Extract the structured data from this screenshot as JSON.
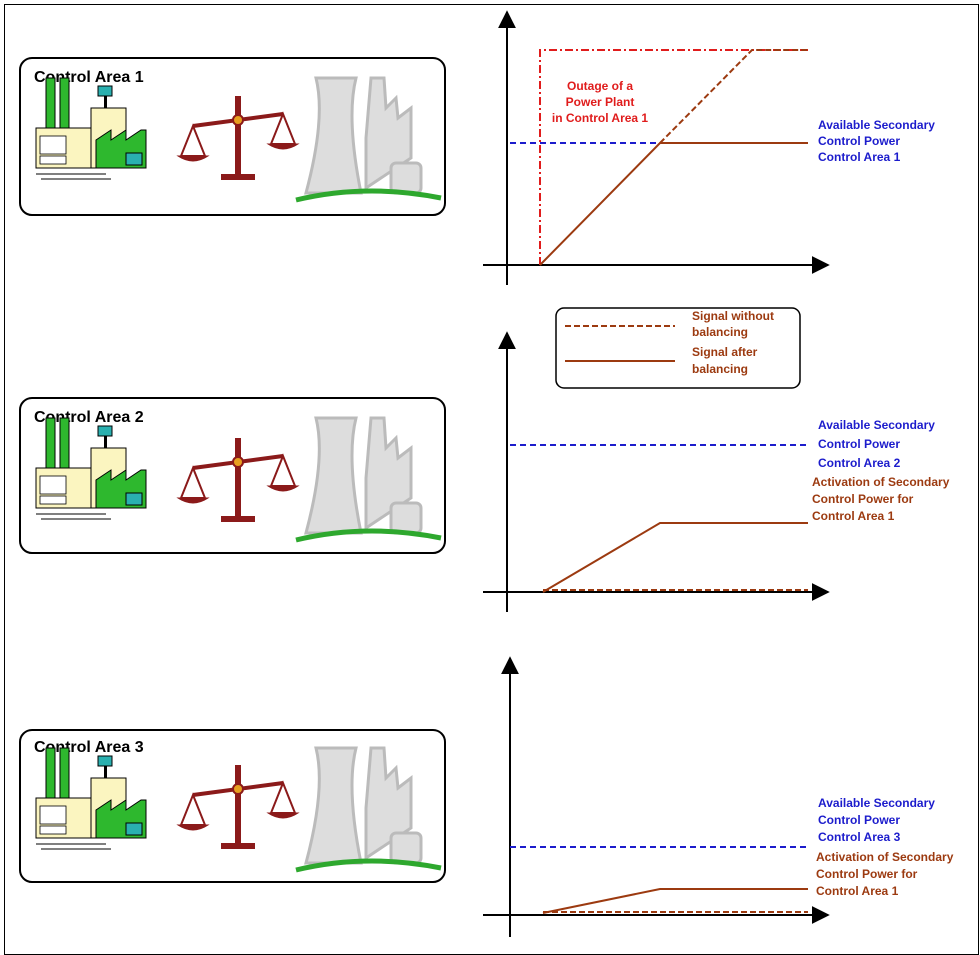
{
  "areas": [
    {
      "title": "Control Area 1"
    },
    {
      "title": "Control Area 2"
    },
    {
      "title": "Control Area 3"
    }
  ],
  "chart1": {
    "outage_label": [
      "Outage of a",
      "Power Plant",
      "in Control Area 1"
    ],
    "available_label": [
      "Available Secondary",
      "Control Power",
      "Control Area 1"
    ]
  },
  "legend": {
    "dashed": [
      "Signal without",
      "balancing"
    ],
    "solid": [
      "Signal after",
      "balancing"
    ]
  },
  "chart2": {
    "available_label": [
      "Available Secondary",
      "Control Power",
      "Control Area 2"
    ],
    "activation_label": [
      "Activation of Secondary",
      "Control Power for",
      "Control Area 1"
    ]
  },
  "chart3": {
    "available_label": [
      "Available Secondary",
      "Control Power",
      "Control Area 3"
    ],
    "activation_label": [
      "Activation of Secondary",
      "Control Power for",
      "Control Area 1"
    ]
  }
}
